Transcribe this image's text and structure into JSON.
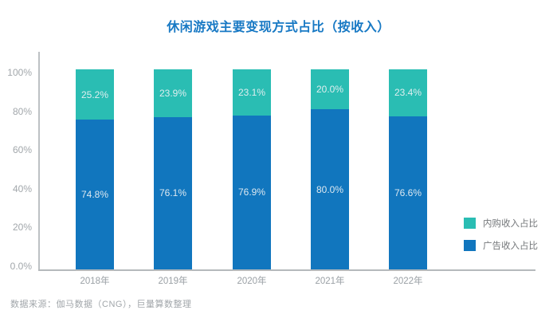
{
  "title": "休闲游戏主要变现方式占比（按收入）",
  "source_note": "数据来源：伽马数据（CNG），巨量算数整理",
  "colors": {
    "title": "#1879c4",
    "iap": "#2abdb3",
    "ad": "#1176be",
    "axis_line": "#bdc1c4",
    "tick_label": "#a2a7ab",
    "bar_label": "#eef2f4",
    "legend_text": "#75787b"
  },
  "legend": [
    {
      "label": "内购收入占比",
      "color_key": "iap"
    },
    {
      "label": "广告收入占比",
      "color_key": "ad"
    }
  ],
  "chart_data": {
    "type": "bar",
    "stacked": true,
    "title": "休闲游戏主要变现方式占比（按收入）",
    "categories": [
      "2018年",
      "2019年",
      "2020年",
      "2021年",
      "2022年"
    ],
    "series": [
      {
        "name": "内购收入占比",
        "values": [
          25.2,
          23.9,
          23.1,
          20.0,
          23.4
        ],
        "labels": [
          "25.2%",
          "23.9%",
          "23.1%",
          "20.0%",
          "23.4%"
        ],
        "color_key": "iap"
      },
      {
        "name": "广告收入占比",
        "values": [
          74.8,
          76.1,
          76.9,
          80.0,
          76.6
        ],
        "labels": [
          "74.8%",
          "76.1%",
          "76.9%",
          "80.0%",
          "76.6%"
        ],
        "color_key": "ad"
      }
    ],
    "y_ticks": [
      "100%",
      "80%",
      "60%",
      "40%",
      "20%",
      "0.0%"
    ],
    "ylim": [
      0,
      100
    ],
    "grid": false,
    "legend_position": "right-bottom",
    "xlabel": "",
    "ylabel": ""
  }
}
